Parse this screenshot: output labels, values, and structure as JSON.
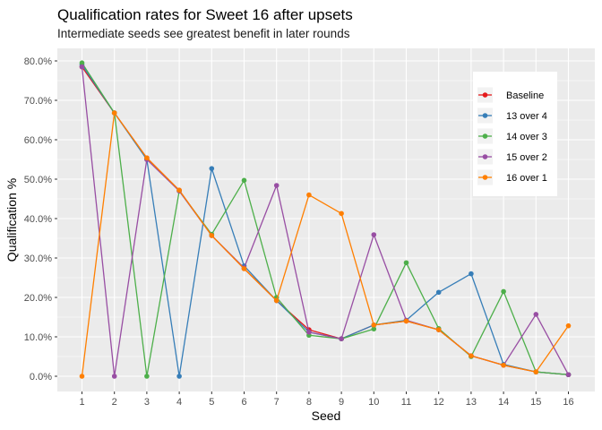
{
  "chart_data": {
    "type": "line",
    "title": "Qualification rates for Sweet 16 after upsets",
    "subtitle": "Intermediate seeds see greatest benefit in later rounds",
    "xlabel": "Seed",
    "ylabel": "Qualification %",
    "x": [
      1,
      2,
      3,
      4,
      5,
      6,
      7,
      8,
      9,
      10,
      11,
      12,
      13,
      14,
      15,
      16
    ],
    "x_tick_labels": [
      "1",
      "2",
      "3",
      "4",
      "5",
      "6",
      "7",
      "8",
      "9",
      "10",
      "11",
      "12",
      "13",
      "14",
      "15",
      "16"
    ],
    "ylim": [
      0,
      0.8
    ],
    "y_ticks": [
      0,
      0.1,
      0.2,
      0.3,
      0.4,
      0.5,
      0.6,
      0.7,
      0.8
    ],
    "y_tick_labels": [
      "0.0%",
      "10.0%",
      "20.0%",
      "30.0%",
      "40.0%",
      "50.0%",
      "60.0%",
      "70.0%",
      "80.0%"
    ],
    "grid": true,
    "legend_position": "top-right",
    "series": [
      {
        "name": "Baseline",
        "color": "#e41a1c",
        "values": [
          0.785,
          0.668,
          0.554,
          0.472,
          0.357,
          0.273,
          0.192,
          0.118,
          0.095,
          0.13,
          0.14,
          0.118,
          0.052,
          0.028,
          0.011,
          0.004
        ]
      },
      {
        "name": "13 over 4",
        "color": "#377eb8",
        "values": [
          0.79,
          0.668,
          0.55,
          0.0,
          0.527,
          0.28,
          0.192,
          0.112,
          0.095,
          0.13,
          0.142,
          0.213,
          0.26,
          0.03,
          0.011,
          0.004
        ]
      },
      {
        "name": "14 over 3",
        "color": "#4daf4a",
        "values": [
          0.795,
          0.668,
          0.0,
          0.47,
          0.36,
          0.497,
          0.2,
          0.104,
          0.095,
          0.12,
          0.288,
          0.121,
          0.05,
          0.215,
          0.011,
          0.004
        ]
      },
      {
        "name": "15 over 2",
        "color": "#984ea3",
        "values": [
          0.785,
          0.0,
          0.55,
          0.47,
          0.357,
          0.275,
          0.484,
          0.112,
          0.095,
          0.359,
          0.142,
          0.118,
          0.052,
          0.028,
          0.157,
          0.004
        ]
      },
      {
        "name": "16 over 1",
        "color": "#ff7f00",
        "values": [
          0.0,
          0.668,
          0.554,
          0.472,
          0.357,
          0.273,
          0.192,
          0.46,
          0.413,
          0.13,
          0.14,
          0.118,
          0.052,
          0.028,
          0.011,
          0.128
        ]
      }
    ],
    "colors": {
      "panel_background": "#ebebeb",
      "grid": "#ffffff"
    }
  }
}
